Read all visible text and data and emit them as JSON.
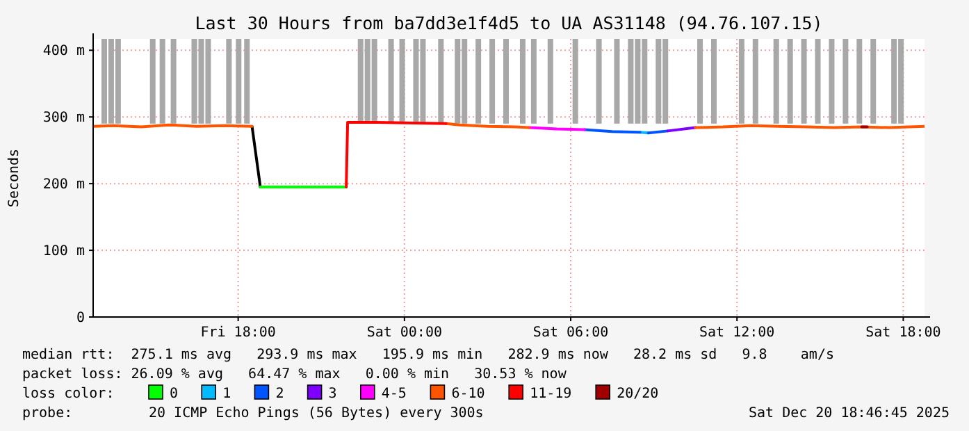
{
  "chart_data": {
    "type": "line",
    "title": "Last 30 Hours from ba7dd3e1f4d5 to UA AS31148 (94.76.107.15)",
    "ylabel": "Seconds",
    "legend_title": "loss color:",
    "legend": "bottom",
    "grid": true,
    "xlim": [
      "2025-12-19T12:46",
      "2025-12-20T18:46"
    ],
    "xticks": [
      {
        "value": "2025-12-19T18:00",
        "label": "Fri 18:00"
      },
      {
        "value": "2025-12-20T00:00",
        "label": "Sat 00:00"
      },
      {
        "value": "2025-12-20T06:00",
        "label": "Sat 06:00"
      },
      {
        "value": "2025-12-20T12:00",
        "label": "Sat 12:00"
      },
      {
        "value": "2025-12-20T18:00",
        "label": "Sat 18:00"
      }
    ],
    "ylim": [
      0,
      417
    ],
    "yticks": [
      {
        "value": 0,
        "label": "0"
      },
      {
        "value": 100,
        "label": "100 m"
      },
      {
        "value": 200,
        "label": "200 m"
      },
      {
        "value": 300,
        "label": "300 m"
      },
      {
        "value": 400,
        "label": "400 m"
      }
    ],
    "series": [
      {
        "type": "bar",
        "color": "#a8a8a8",
        "base": [
          290,
          290,
          290,
          290,
          290,
          290,
          290,
          290,
          290,
          290,
          290,
          290,
          290,
          290,
          290,
          290,
          290,
          290,
          290,
          290,
          290,
          290,
          290,
          290,
          290,
          290,
          290,
          290,
          290,
          290,
          290,
          290,
          290,
          290,
          290,
          290,
          290,
          290,
          290,
          290,
          290,
          290,
          290,
          290,
          290,
          290,
          290,
          290,
          290,
          290
        ],
        "x": [
          "2025-12-19T13:10",
          "2025-12-19T13:25",
          "2025-12-19T13:40",
          "2025-12-19T14:55",
          "2025-12-19T15:16",
          "2025-12-19T15:40",
          "2025-12-19T16:25",
          "2025-12-19T16:40",
          "2025-12-19T16:55",
          "2025-12-19T17:40",
          "2025-12-19T18:01",
          "2025-12-19T18:19",
          "2025-12-19T22:25",
          "2025-12-19T22:40",
          "2025-12-19T22:55",
          "2025-12-19T23:31",
          "2025-12-19T23:55",
          "2025-12-20T00:25",
          "2025-12-20T00:40",
          "2025-12-20T01:19",
          "2025-12-20T01:55",
          "2025-12-20T02:10",
          "2025-12-20T02:40",
          "2025-12-20T03:10",
          "2025-12-20T03:40",
          "2025-12-20T04:16",
          "2025-12-20T04:40",
          "2025-12-20T05:16",
          "2025-12-20T06:10",
          "2025-12-20T07:01",
          "2025-12-20T07:40",
          "2025-12-20T08:10",
          "2025-12-20T08:25",
          "2025-12-20T08:40",
          "2025-12-20T09:10",
          "2025-12-20T09:25",
          "2025-12-20T10:40",
          "2025-12-20T11:10",
          "2025-12-20T12:10",
          "2025-12-20T12:40",
          "2025-12-20T13:25",
          "2025-12-20T13:55",
          "2025-12-20T14:25",
          "2025-12-20T14:55",
          "2025-12-20T15:25",
          "2025-12-20T15:55",
          "2025-12-20T16:25",
          "2025-12-20T16:55",
          "2025-12-20T17:40",
          "2025-12-20T17:55"
        ],
        "values": [
          127,
          127,
          127,
          127,
          127,
          127,
          127,
          127,
          127,
          127,
          127,
          127,
          127,
          127,
          127,
          127,
          127,
          127,
          127,
          127,
          127,
          127,
          127,
          127,
          127,
          127,
          127,
          127,
          127,
          127,
          127,
          127,
          127,
          127,
          127,
          127,
          127,
          127,
          127,
          127,
          127,
          127,
          127,
          127,
          127,
          127,
          127,
          127,
          127,
          127
        ]
      },
      {
        "color": "#000000",
        "x": [
          "2025-12-19T18:30",
          "2025-12-19T18:48"
        ],
        "values": [
          286,
          195
        ]
      },
      {
        "name": "0",
        "color": "#00ff00",
        "x": [
          "2025-12-19T18:48",
          "2025-12-19T21:54"
        ],
        "values": [
          195,
          195
        ]
      },
      {
        "name": "1",
        "color": "#00bbff",
        "x": [
          "2025-12-20T08:30",
          "2025-12-20T08:48"
        ],
        "values": [
          277,
          276
        ]
      },
      {
        "name": "2",
        "color": "#0055ff",
        "x": [
          "2025-12-20T06:30",
          "2025-12-20T07:30",
          "2025-12-20T08:30",
          "2025-12-20T08:36",
          "2025-12-20T08:48",
          "2025-12-20T09:30"
        ],
        "values": [
          281,
          278,
          277,
          null,
          276,
          279
        ]
      },
      {
        "name": "3",
        "color": "#7e00ff",
        "x": [
          "2025-12-20T09:30",
          "2025-12-20T10:30"
        ],
        "values": [
          279,
          284
        ]
      },
      {
        "name": "4-5",
        "color": "#ff00ff",
        "x": [
          "2025-12-20T04:30",
          "2025-12-20T05:30",
          "2025-12-20T06:30"
        ],
        "values": [
          284,
          282,
          281
        ]
      },
      {
        "name": "6-10",
        "color": "#ff5500",
        "x": [
          "2025-12-19T12:46",
          "2025-12-19T13:30",
          "2025-12-19T14:30",
          "2025-12-19T15:30",
          "2025-12-19T16:30",
          "2025-12-19T17:30",
          "2025-12-19T18:30",
          "2025-12-19T18:36",
          "2025-12-20T01:30",
          "2025-12-20T02:00",
          "2025-12-20T03:00",
          "2025-12-20T04:00",
          "2025-12-20T04:30",
          "2025-12-20T04:36",
          "2025-12-20T10:30",
          "2025-12-20T11:30",
          "2025-12-20T12:30",
          "2025-12-20T13:30",
          "2025-12-20T14:30",
          "2025-12-20T15:30",
          "2025-12-20T16:30",
          "2025-12-20T17:30",
          "2025-12-20T18:46"
        ],
        "values": [
          286,
          287,
          285,
          288,
          286,
          287,
          286,
          null,
          290,
          288,
          286,
          285,
          284,
          null,
          284,
          285,
          287,
          286,
          285,
          284,
          285,
          284,
          286
        ]
      },
      {
        "name": "11-19",
        "color": "#ff0000",
        "x": [
          "2025-12-19T21:54",
          "2025-12-19T21:57",
          "2025-12-19T23:00",
          "2025-12-20T00:00",
          "2025-12-20T01:30"
        ],
        "values": [
          195,
          292,
          292,
          291,
          290
        ]
      },
      {
        "name": "20/20",
        "color": "#a10000",
        "x": [
          "2025-12-20T16:30",
          "2025-12-20T16:42"
        ],
        "values": [
          285,
          285
        ]
      }
    ],
    "annotations": [
      "median rtt:  275.1 ms avg   293.9 ms max   195.9 ms min   282.9 ms now   28.2 ms sd   9.8    am/s",
      "packet loss: 26.09 % avg   64.47 % max   0.00 % min   30.53 % now",
      "probe:",
      "20 ICMP Echo Pings (56 Bytes) every 300s",
      "Sat Dec 20 18:46:45 2025"
    ]
  }
}
